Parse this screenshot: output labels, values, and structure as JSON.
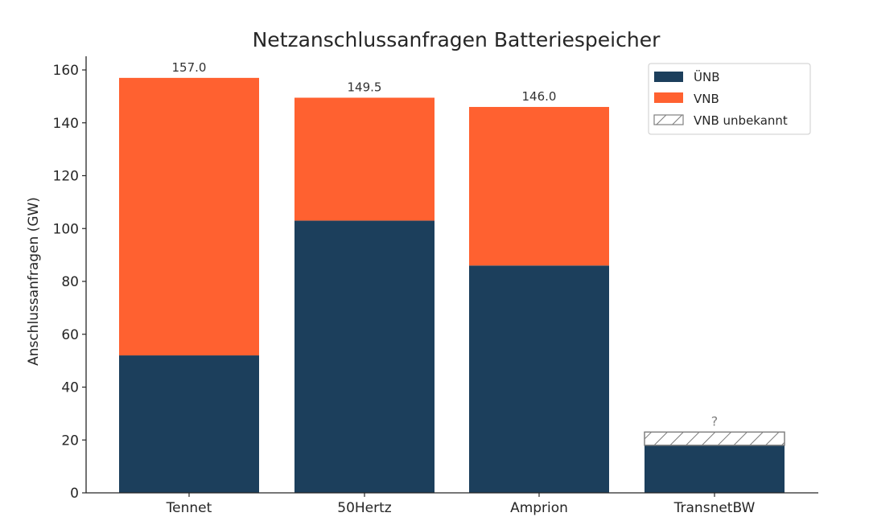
{
  "chart_data": {
    "type": "bar",
    "stacked": true,
    "title": "Netzanschlussanfragen Batteriespeicher",
    "xlabel": "",
    "ylabel": "Anschlussanfragen (GW)",
    "ylim": [
      0,
      165
    ],
    "yticks": [
      0,
      20,
      40,
      60,
      80,
      100,
      120,
      140,
      160
    ],
    "grid": false,
    "legend_position": "top-right",
    "categories": [
      "Tennet",
      "50Hertz",
      "Amprion",
      "TransnetBW"
    ],
    "series": [
      {
        "name": "ÜNB",
        "color": "#1c3f5c",
        "values": [
          52,
          103,
          86,
          18
        ]
      },
      {
        "name": "VNB",
        "color": "#ff6130",
        "values": [
          105,
          46.5,
          60,
          0
        ]
      },
      {
        "name": "VNB unbekannt",
        "color": "#ffffff",
        "pattern": "hatch",
        "values": [
          0,
          0,
          0,
          5
        ]
      }
    ],
    "data_labels": [
      "157.0",
      "149.5",
      "146.0",
      "?"
    ]
  }
}
